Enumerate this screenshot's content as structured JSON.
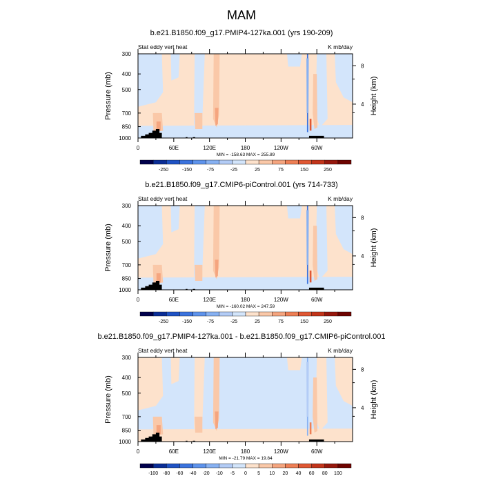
{
  "figure": {
    "title": "MAM"
  },
  "chart_data": [
    {
      "type": "heatmap",
      "title": "b.e21.B1850.f09_g17.PMIP4-127ka.001 (yrs 190-209)",
      "left_label": "Stat eddy vert heat",
      "right_label": "K mb/day",
      "ylabel": "Pressure (mb)",
      "ylabel_right": "Height (km)",
      "xlabel": "",
      "x_ticks": [
        "0",
        "60E",
        "120E",
        "180",
        "120W",
        "60W"
      ],
      "y_ticks": [
        "300",
        "400",
        "500",
        "700",
        "850",
        "1000"
      ],
      "y2_ticks": [
        "8",
        "4"
      ],
      "ylim": [
        1000,
        300
      ],
      "stats": "MIN = -158.63   MAX = 255.89",
      "colorbar_labels": [
        "-250",
        "-150",
        "-75",
        "-25",
        "25",
        "75",
        "150",
        "250"
      ],
      "colorbar_colors": [
        "#00004c",
        "#0a2d96",
        "#1f52c4",
        "#3b73de",
        "#5e93ec",
        "#87b1f2",
        "#b3ccf6",
        "#d3e5fb",
        "#fde2cc",
        "#fac8a8",
        "#f5a57f",
        "#ee7f55",
        "#e05733",
        "#c2341a",
        "#96170c",
        "#6e0300"
      ],
      "field": {
        "background": "#fde2cc",
        "light_blue": "#d3e5fb",
        "mid_blue": "#87b1f2",
        "dark_blue": "#3b73de",
        "light_orange": "#fac8a8",
        "mid_orange": "#f5a57f",
        "deep_orange": "#e05733"
      }
    },
    {
      "type": "heatmap",
      "title": "b.e21.B1850.f09_g17.CMIP6-piControl.001 (yrs 714-733)",
      "left_label": "Stat eddy vert heat",
      "right_label": "K mb/day",
      "ylabel": "Pressure (mb)",
      "ylabel_right": "Height (km)",
      "xlabel": "",
      "x_ticks": [
        "0",
        "60E",
        "120E",
        "180",
        "120W",
        "60W"
      ],
      "y_ticks": [
        "300",
        "400",
        "500",
        "700",
        "850",
        "1000"
      ],
      "y2_ticks": [
        "8",
        "4"
      ],
      "ylim": [
        1000,
        300
      ],
      "stats": "MIN = -160.02   MAX = 247.59",
      "colorbar_labels": [
        "-250",
        "-150",
        "-75",
        "-25",
        "25",
        "75",
        "150",
        "250"
      ],
      "colorbar_colors": [
        "#00004c",
        "#0a2d96",
        "#1f52c4",
        "#3b73de",
        "#5e93ec",
        "#87b1f2",
        "#b3ccf6",
        "#d3e5fb",
        "#fde2cc",
        "#fac8a8",
        "#f5a57f",
        "#ee7f55",
        "#e05733",
        "#c2341a",
        "#96170c",
        "#6e0300"
      ],
      "field": {
        "background": "#fde2cc",
        "light_blue": "#d3e5fb",
        "mid_blue": "#87b1f2",
        "dark_blue": "#3b73de",
        "light_orange": "#fac8a8",
        "mid_orange": "#f5a57f",
        "deep_orange": "#e05733"
      }
    },
    {
      "type": "heatmap",
      "title": "b.e21.B1850.f09_g17.PMIP4-127ka.001 - b.e21.B1850.f09_g17.CMIP6-piControl.001",
      "left_label": "Stat eddy vert heat",
      "right_label": "K mb/day",
      "ylabel": "Pressure (mb)",
      "ylabel_right": "Height (km)",
      "xlabel": "",
      "x_ticks": [
        "0",
        "60E",
        "120E",
        "180",
        "120W",
        "60W"
      ],
      "y_ticks": [
        "300",
        "400",
        "500",
        "700",
        "850",
        "1000"
      ],
      "y2_ticks": [
        "8",
        "4"
      ],
      "ylim": [
        1000,
        300
      ],
      "stats": "MIN = -21.79   MAX = 19.84",
      "colorbar_labels": [
        "-100",
        "-80",
        "-60",
        "-40",
        "-20",
        "-10",
        "-5",
        "0",
        "5",
        "10",
        "20",
        "40",
        "60",
        "80",
        "100"
      ],
      "colorbar_colors": [
        "#00004c",
        "#0a2d96",
        "#1f52c4",
        "#3b73de",
        "#5e93ec",
        "#87b1f2",
        "#b3ccf6",
        "#d3e5fb",
        "#fde2cc",
        "#fac8a8",
        "#f5a57f",
        "#ee7f55",
        "#e05733",
        "#c2341a",
        "#96170c",
        "#6e0300"
      ],
      "field": {
        "background": "#d3e5fb",
        "light_blue": "#fde2cc",
        "mid_blue": "#b3ccf6",
        "dark_blue": "#87b1f2",
        "light_orange": "#fac8a8",
        "mid_orange": "#f5a57f",
        "deep_orange": "#ee7f55"
      }
    }
  ]
}
